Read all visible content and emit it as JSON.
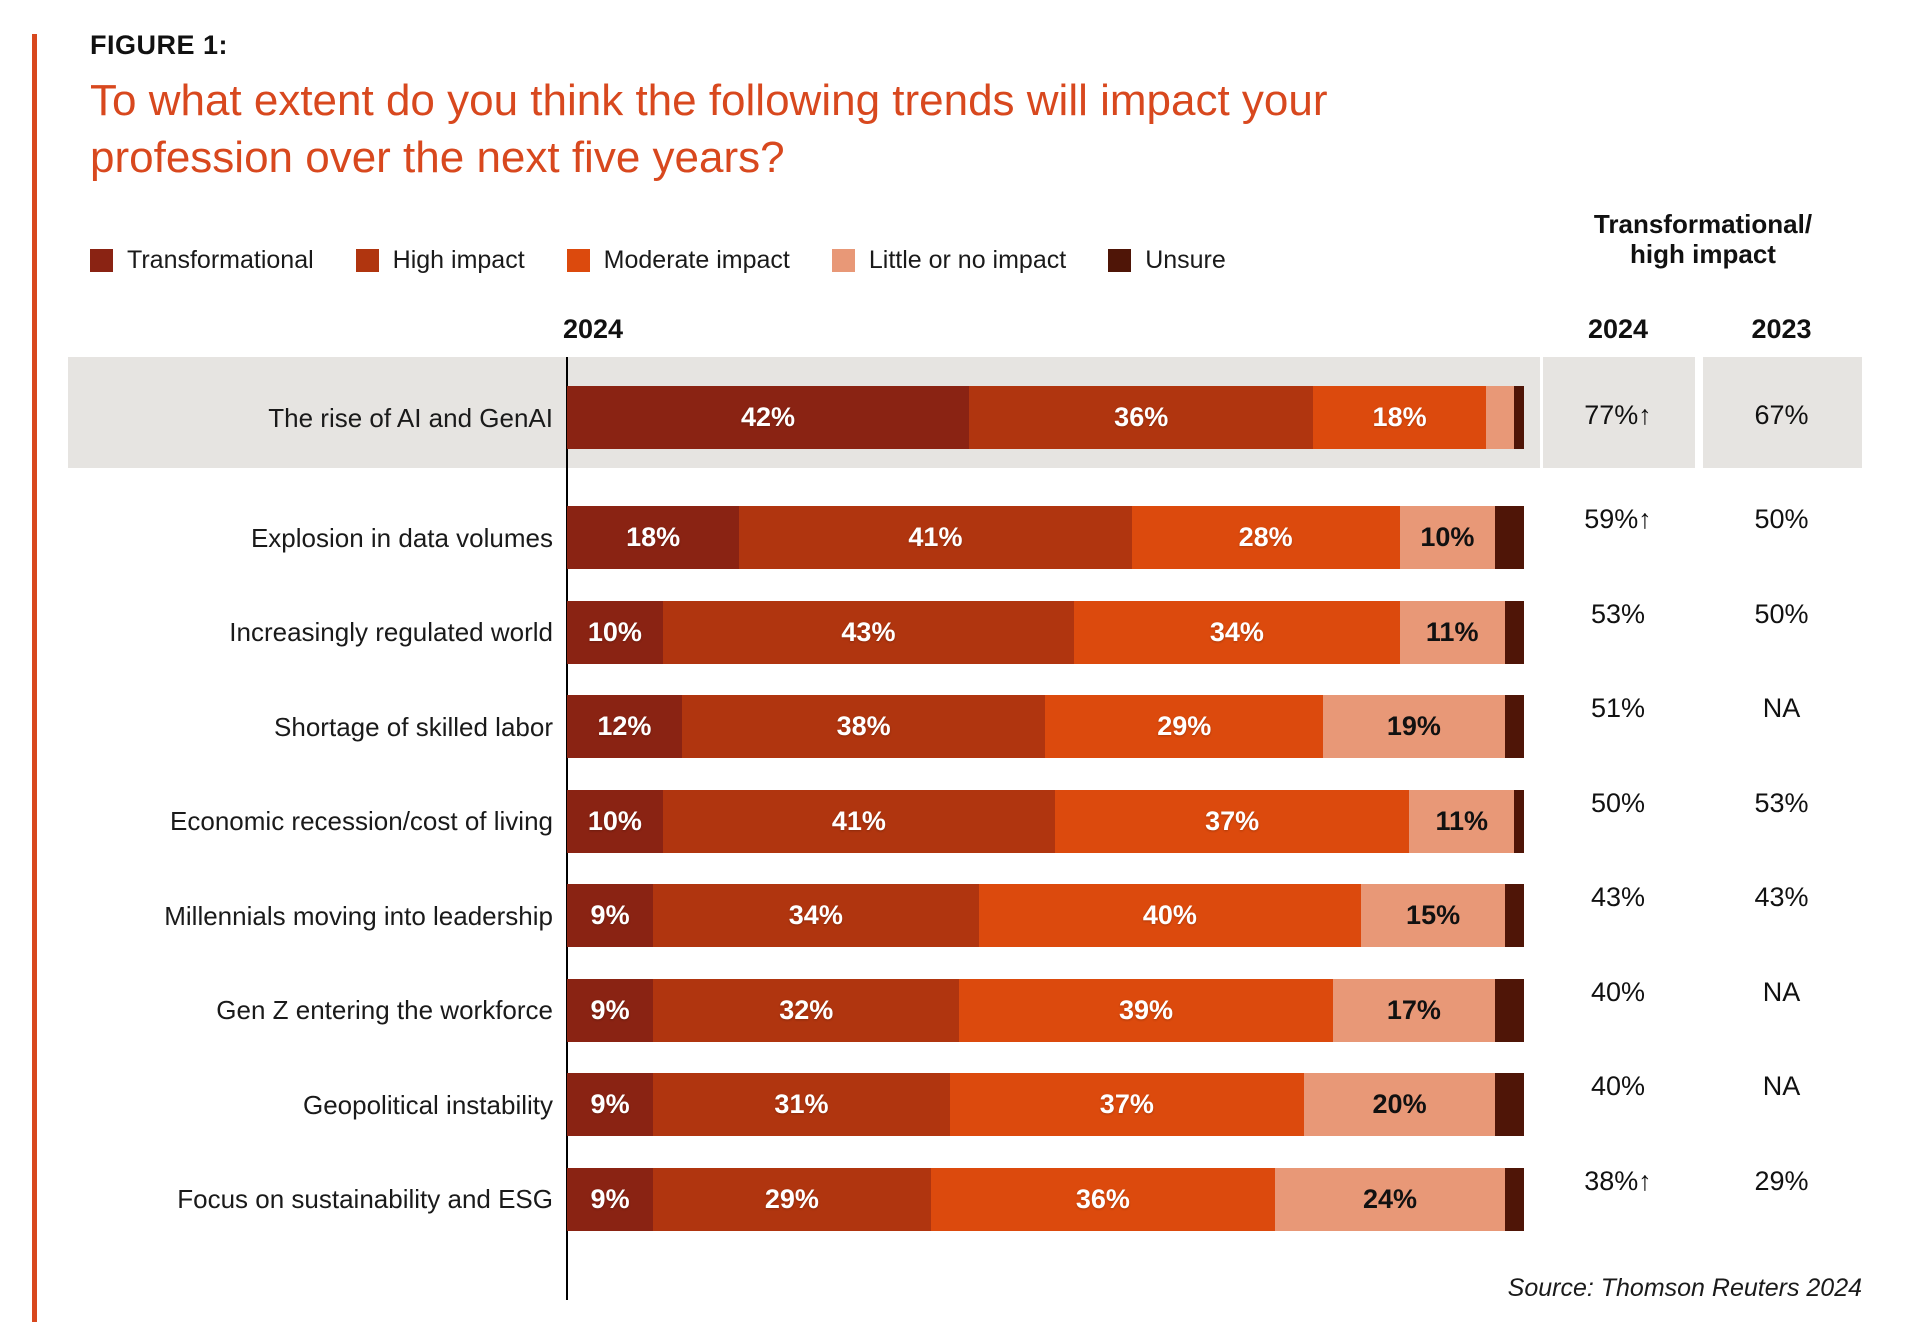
{
  "figure": {
    "eyebrow": "FIGURE 1:",
    "title": "To what extent do you think the following trends will impact your profession over the next five years?",
    "axis_year_label": "2024",
    "summary_header_line1": "Transformational/",
    "summary_header_line2": "high impact",
    "summary_col_2024": "2024",
    "summary_col_2023": "2023",
    "source": "Source: Thomson Reuters 2024"
  },
  "colors": {
    "accent": "#D8481E",
    "row_highlight": "#E6E4E1",
    "axis": "#000000",
    "label_on_dark_segment": "#FFFFFF",
    "label_on_light_segment": "#111111"
  },
  "legend": [
    {
      "key": "transformational",
      "label": "Transformational",
      "color": "#8A2313"
    },
    {
      "key": "high",
      "label": "High impact",
      "color": "#B0350F"
    },
    {
      "key": "moderate",
      "label": "Moderate impact",
      "color": "#DC4A0D"
    },
    {
      "key": "little",
      "label": "Little or no impact",
      "color": "#E89877"
    },
    {
      "key": "unsure",
      "label": "Unsure",
      "color": "#4F1507"
    }
  ],
  "chart_data": {
    "type": "bar",
    "orientation": "horizontal-stacked",
    "unit": "%",
    "title": "To what extent do you think the following trends will impact your profession over the next five years?",
    "xlim": [
      0,
      100
    ],
    "legend_position": "top",
    "grid": false,
    "highlighted_row": 0,
    "categories": [
      "The rise of AI and GenAI",
      "Explosion in data volumes",
      "Increasingly regulated world",
      "Shortage of skilled labor",
      "Economic recession/cost of living",
      "Millennials moving into leadership",
      "Gen Z entering the workforce",
      "Geopolitical instability",
      "Focus on sustainability and ESG"
    ],
    "series": [
      {
        "name": "Transformational",
        "values": [
          42,
          18,
          10,
          12,
          10,
          9,
          9,
          9,
          9
        ]
      },
      {
        "name": "High impact",
        "values": [
          36,
          41,
          43,
          38,
          41,
          34,
          32,
          31,
          29
        ]
      },
      {
        "name": "Moderate impact",
        "values": [
          18,
          28,
          34,
          29,
          37,
          40,
          39,
          37,
          36
        ]
      },
      {
        "name": "Little or no impact",
        "values": [
          3,
          10,
          11,
          19,
          11,
          15,
          17,
          20,
          24
        ]
      },
      {
        "name": "Unsure",
        "values": [
          1,
          3,
          2,
          2,
          1,
          2,
          3,
          3,
          2
        ]
      }
    ],
    "summary": {
      "label": "Transformational/high impact",
      "y2024": [
        "77%↑",
        "59%↑",
        "53%",
        "51%",
        "50%",
        "43%",
        "40%",
        "40%",
        "38%↑"
      ],
      "y2023": [
        "67%",
        "50%",
        "50%",
        "NA",
        "53%",
        "43%",
        "NA",
        "NA",
        "29%"
      ]
    }
  }
}
